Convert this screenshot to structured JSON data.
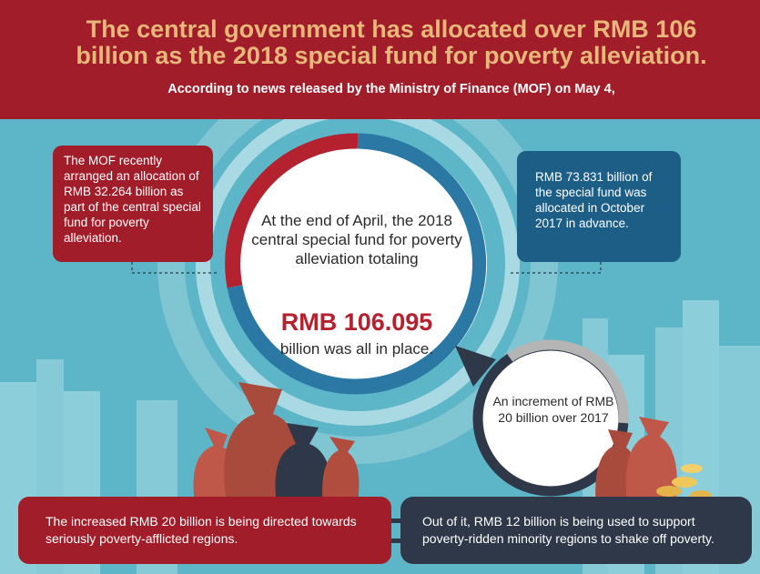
{
  "header": {
    "title": "The central government has allocated over RMB 106 billion as the 2018 special fund for poverty alleviation.",
    "subtitle": "According to news released by the Ministry of Finance (MOF) on May 4,"
  },
  "callouts": {
    "left": "The MOF recently arranged an allocation of RMB 32.264 billion as part of the central special fund for poverty alleviation.",
    "right": "RMB 73.831 billion of the special fund was allocated in October 2017 in advance."
  },
  "center": {
    "text": "At the end of April, the 2018 central special fund for poverty alleviation totaling",
    "amount": "RMB 106.095",
    "tail": "billion was all in place."
  },
  "increment": {
    "text": "An increment of RMB 20 billion over 2017"
  },
  "bottom": {
    "left": "The increased RMB 20 billion is being directed towards seriously poverty-afflicted regions.",
    "right": "Out of it, RMB 12 billion is being used to support poverty-ridden minority regions to shake off poverty."
  },
  "colors": {
    "header_red": "#a11d2a",
    "title_gold": "#e8b77a",
    "teal_background": "#5cb6c7",
    "navy_box": "#1c5e86",
    "dark_box": "#2e3848"
  },
  "ring": {
    "red_share_of_total": 0.304,
    "blue_share_of_total": 0.696
  }
}
